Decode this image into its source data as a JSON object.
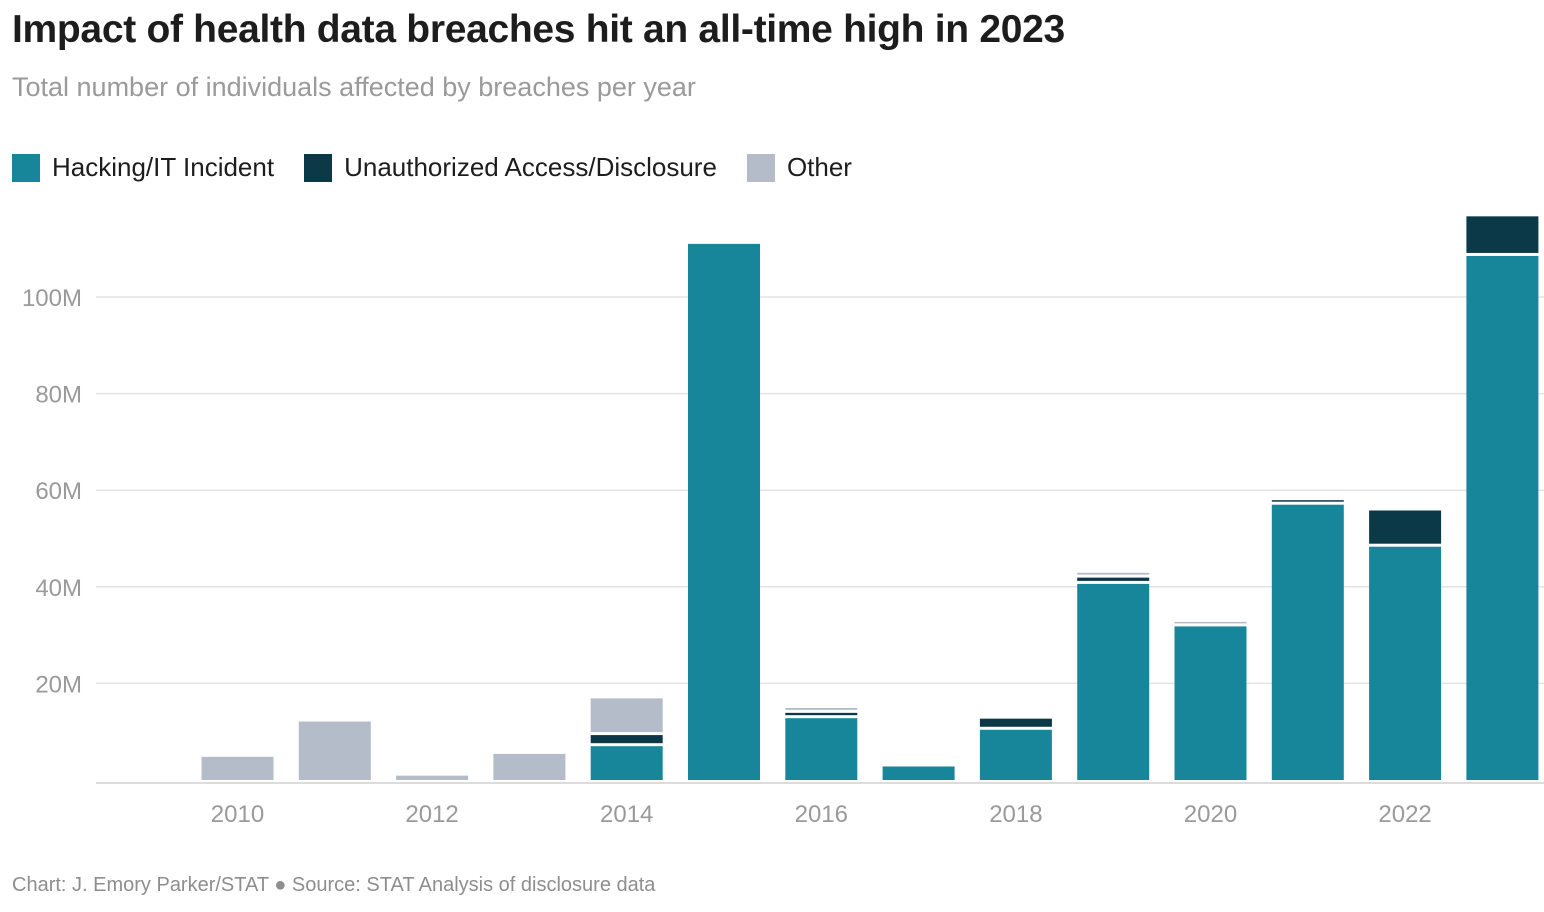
{
  "title": "Impact of health data breaches hit an all-time high in 2023",
  "subtitle": "Total number of individuals affected by breaches per year",
  "footer": "Chart: J. Emory Parker/STAT ● Source: STAT Analysis of disclosure data",
  "legend": [
    {
      "label": "Hacking/IT Incident",
      "color": "#18869a"
    },
    {
      "label": "Unauthorized Access/Disclosure",
      "color": "#0b3947"
    },
    {
      "label": "Other",
      "color": "#b3bcc8"
    }
  ],
  "chart_data": {
    "type": "bar",
    "stacked": true,
    "title": "Impact of health data breaches hit an all-time high in 2023",
    "subtitle": "Total number of individuals affected by breaches per year",
    "xlabel": "",
    "ylabel": "",
    "categories": [
      2010,
      2011,
      2012,
      2013,
      2014,
      2015,
      2016,
      2017,
      2018,
      2019,
      2020,
      2021,
      2022,
      2023
    ],
    "x_tick_labels": [
      "2010",
      "2012",
      "2014",
      "2016",
      "2018",
      "2020",
      "2022"
    ],
    "y_ticks": [
      20000000,
      40000000,
      60000000,
      80000000,
      100000000
    ],
    "y_tick_labels": [
      "20M",
      "40M",
      "60M",
      "80M",
      "100M"
    ],
    "ylim": [
      0,
      116000000
    ],
    "grid": true,
    "legend_position": "top-left",
    "series": [
      {
        "name": "Hacking/IT Incident",
        "color": "#18869a",
        "values": [
          0,
          0,
          0,
          0,
          7000000,
          111000000,
          12800000,
          2800000,
          10400000,
          40600000,
          31800000,
          57000000,
          48300000,
          108500000
        ]
      },
      {
        "name": "Unauthorized Access/Disclosure",
        "color": "#0b3947",
        "values": [
          0,
          0,
          0,
          0,
          2300000,
          0,
          1100000,
          0,
          2300000,
          1300000,
          0,
          700000,
          7500000,
          8200000
        ]
      },
      {
        "name": "Other",
        "color": "#b3bcc8",
        "values": [
          4800000,
          12100000,
          900000,
          5400000,
          7600000,
          0,
          1000000,
          0,
          0,
          1000000,
          500000,
          0,
          0,
          0
        ]
      }
    ]
  }
}
